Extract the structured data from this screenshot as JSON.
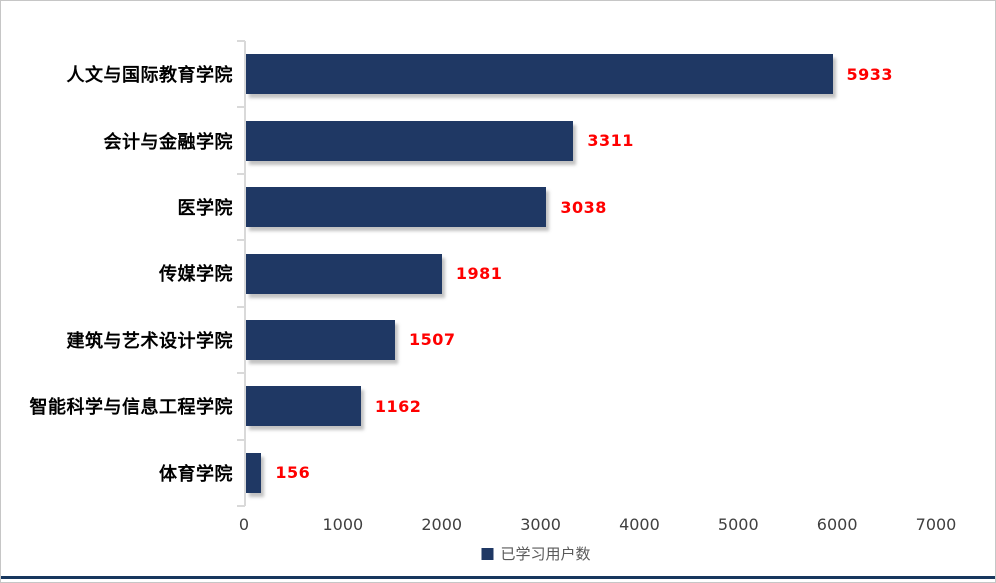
{
  "chart_data": {
    "type": "bar",
    "orientation": "horizontal",
    "title": "",
    "categories": [
      "人文与国际教育学院",
      "会计与金融学院",
      "医学院",
      "传媒学院",
      "建筑与艺术设计学院",
      "智能科学与信息工程学院",
      "体育学院"
    ],
    "values": [
      5933,
      3311,
      3038,
      1981,
      1507,
      1162,
      156
    ],
    "value_labels": [
      "5933",
      "3311",
      "3038",
      "1981",
      "1507",
      "1162",
      "156"
    ],
    "x_ticks": [
      0,
      1000,
      2000,
      3000,
      4000,
      5000,
      6000,
      7000
    ],
    "x_tick_labels": [
      "0",
      "1000",
      "2000",
      "3000",
      "4000",
      "5000",
      "6000",
      "7000"
    ],
    "xlim": [
      0,
      7000
    ],
    "xlabel": "",
    "ylabel": "",
    "grid": false,
    "legend": {
      "label": "已学习用户数",
      "position": "bottom"
    },
    "colors": {
      "bar": "#1f3864",
      "value_label": "#ff0000",
      "category_label": "#000000",
      "tick_label": "#404040",
      "axis_line": "#d9d9d9",
      "legend_text": "#595959",
      "legend_swatch": "#1f3864",
      "bottom_rule": "#17375e",
      "background": "#ffffff",
      "frame_border": "#c6c6c6"
    }
  }
}
